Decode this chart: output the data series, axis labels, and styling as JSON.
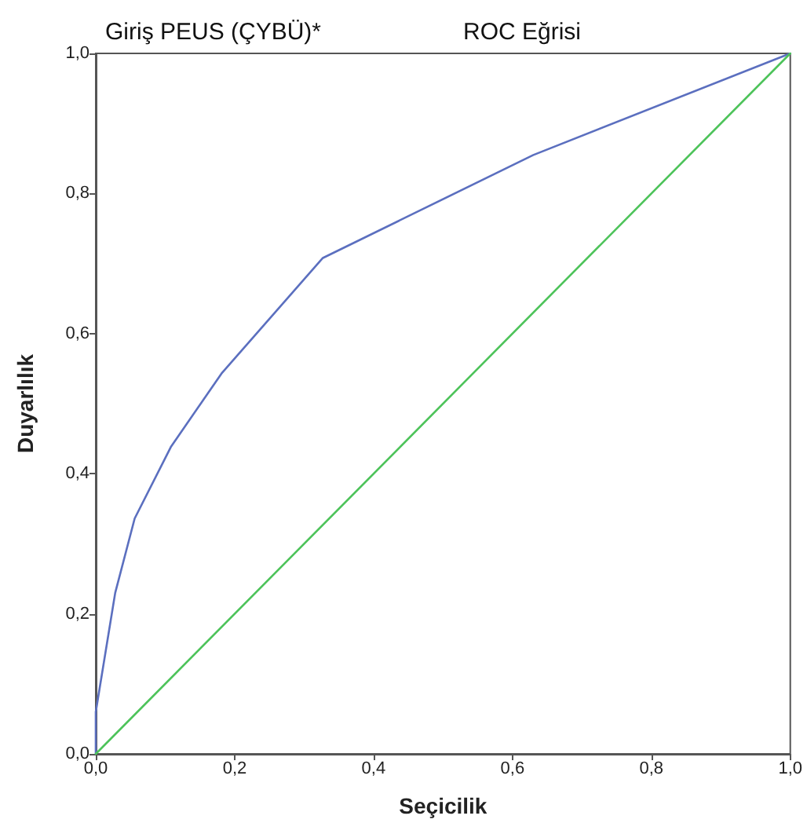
{
  "chart_data": {
    "type": "line",
    "title": "ROC Eğrisi",
    "subtitle": "Giriş PEUS (ÇYBÜ)*",
    "xlabel": "Seçicilik",
    "ylabel": "Duyarlılık",
    "xlim": [
      0,
      1
    ],
    "ylim": [
      0,
      1
    ],
    "xticks": [
      {
        "value": 0,
        "label": "0,0"
      },
      {
        "value": 0.2,
        "label": "0,2"
      },
      {
        "value": 0.4,
        "label": "0,4"
      },
      {
        "value": 0.6,
        "label": "0,6"
      },
      {
        "value": 0.8,
        "label": "0,8"
      },
      {
        "value": 1,
        "label": "1,0"
      }
    ],
    "yticks": [
      {
        "value": 0,
        "label": "0,0"
      },
      {
        "value": 0.2,
        "label": "0,2"
      },
      {
        "value": 0.4,
        "label": "0,4"
      },
      {
        "value": 0.6,
        "label": "0,6"
      },
      {
        "value": 0.8,
        "label": "0,8"
      },
      {
        "value": 1,
        "label": "1,0"
      }
    ],
    "marker": "none",
    "line_style": "solid",
    "series": [
      {
        "color": "#5b6fbf",
        "x": [
          0,
          0,
          0.028,
          0.056,
          0.108,
          0.181,
          0.327,
          0.63,
          1
        ],
        "values": [
          0,
          0.06,
          0.23,
          0.336,
          0.438,
          0.543,
          0.708,
          0.855,
          1
        ]
      },
      {
        "color": "#4dc35a",
        "x": [
          0,
          1
        ],
        "values": [
          0,
          1
        ]
      }
    ]
  }
}
